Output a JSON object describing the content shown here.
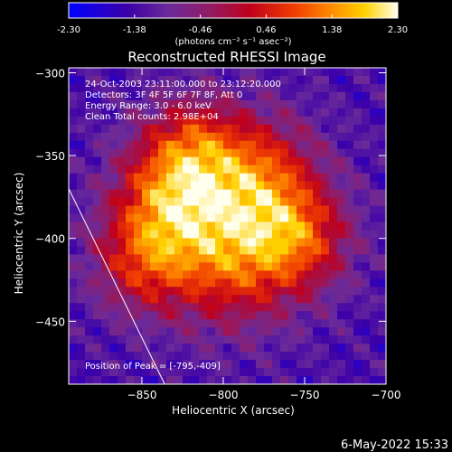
{
  "chart_data": {
    "type": "heatmap",
    "title": "Reconstructed RHESSI Image",
    "xlabel": "Heliocentric X (arcsec)",
    "ylabel": "Heliocentric Y (arcsec)",
    "xlim": [
      -895,
      -700
    ],
    "ylim": [
      -488,
      -297
    ],
    "x_ticks": [
      -850,
      -800,
      -750,
      -700
    ],
    "y_ticks": [
      -300,
      -350,
      -400,
      -450
    ],
    "colorbar": {
      "range": [
        -2.3,
        2.3
      ],
      "tick_values": [
        -2.3,
        -1.38,
        -0.46,
        0.46,
        1.38,
        2.3
      ],
      "tick_labels": [
        "-2.30",
        "-1.38",
        "-0.46",
        "0.46",
        "1.38",
        "2.30"
      ],
      "label": "(photons cm⁻² s⁻¹ asec⁻²)"
    },
    "colormap_stops": [
      {
        "v": 0.0,
        "color": "#0000ff"
      },
      {
        "v": 0.18,
        "color": "#3c00a8"
      },
      {
        "v": 0.3,
        "color": "#6a2a9a"
      },
      {
        "v": 0.42,
        "color": "#8f1d6a"
      },
      {
        "v": 0.55,
        "color": "#c0001c"
      },
      {
        "v": 0.68,
        "color": "#ee3a00"
      },
      {
        "v": 0.8,
        "color": "#ff8c00"
      },
      {
        "v": 0.9,
        "color": "#ffd200"
      },
      {
        "v": 1.0,
        "color": "#ffffee"
      }
    ],
    "grid": false,
    "annotations": [
      "24-Oct-2003 23:11:00.000 to 23:12:20.000",
      "Detectors: 3F 4F 5F 6F 7F 8F, Att 0",
      "Energy Range: 3.0 - 6.0 keV",
      "Clean     Total counts: 2.98E+04"
    ],
    "peak_label": "Position of Peak = [-795,-409]",
    "peak": [
      -795,
      -409
    ],
    "limb_line": [
      [
        -895,
        -370
      ],
      [
        -836,
        -488
      ]
    ],
    "sources": [
      {
        "x": -795,
        "y": -409,
        "amp": 2.3,
        "sigma": 30
      },
      {
        "x": -835,
        "y": -378,
        "amp": 1.85,
        "sigma": 24
      },
      {
        "x": -778,
        "y": -362,
        "amp": 1.7,
        "sigma": 26
      },
      {
        "x": -820,
        "y": -345,
        "amp": 1.35,
        "sigma": 22
      },
      {
        "x": -752,
        "y": -400,
        "amp": 1.3,
        "sigma": 22
      },
      {
        "x": -850,
        "y": -415,
        "amp": 1.1,
        "sigma": 22
      }
    ],
    "background": -1.3
  },
  "footer": {
    "timestamp": "6-May-2022 15:33"
  }
}
